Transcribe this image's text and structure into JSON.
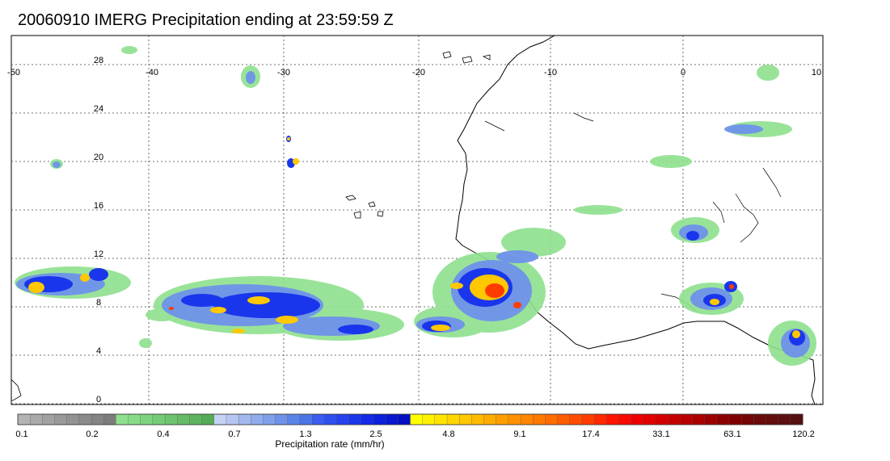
{
  "title": "20060910 IMERG Precipitation ending at 23:59:59 Z",
  "map": {
    "lon_labels": [
      "-50",
      "-40",
      "-30",
      "-20",
      "-10",
      "0",
      "10"
    ],
    "lat_labels": [
      "28",
      "24",
      "20",
      "16",
      "12",
      "8",
      "4",
      "0"
    ],
    "lon_range": [
      -50,
      10
    ],
    "lat_range": [
      -1,
      30
    ],
    "grid": true
  },
  "colorbar": {
    "label": "Precipitation rate (mm/hr)",
    "tick_labels": [
      "0.1",
      "0.2",
      "0.4",
      "0.7",
      "1.3",
      "2.5",
      "4.8",
      "9.1",
      "17.4",
      "33.1",
      "63.1",
      "120.2"
    ],
    "colors": [
      "#b4b4b4",
      "#aaaaaa",
      "#a2a2a2",
      "#9a9a9a",
      "#939393",
      "#8b8b8b",
      "#848484",
      "#7c7c7c",
      "#8ee08e",
      "#86dc86",
      "#7ed47e",
      "#76cc76",
      "#6ec46e",
      "#66bc66",
      "#5eb45e",
      "#56ac56",
      "#c6d2f4",
      "#b6c6f2",
      "#a4b8f0",
      "#92acee",
      "#80a0ec",
      "#6e92ea",
      "#5c84e8",
      "#4a76e6",
      "#3a5cf0",
      "#2f4ff0",
      "#2442ee",
      "#1a36ec",
      "#122ae8",
      "#0c20de",
      "#0818d0",
      "#0410c2",
      "#ffff00",
      "#fff200",
      "#ffe400",
      "#ffd600",
      "#ffc800",
      "#ffba00",
      "#ffac00",
      "#ff9e00",
      "#ff9000",
      "#ff8400",
      "#ff7800",
      "#ff6c00",
      "#ff5c00",
      "#ff4c00",
      "#ff3c00",
      "#ff2800",
      "#ff1400",
      "#f80a00",
      "#ee0000",
      "#e20000",
      "#d40000",
      "#c60000",
      "#b80000",
      "#aa0000",
      "#9c0000",
      "#8e0000",
      "#800000",
      "#760606",
      "#6c0a0a",
      "#640c0c",
      "#5c0e0e",
      "#560e0e"
    ]
  }
}
